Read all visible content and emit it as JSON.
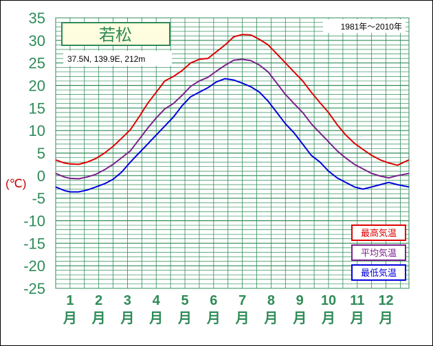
{
  "chart_data": {
    "type": "line",
    "title": "若松",
    "location": "37.5N,  139.9E,  212m",
    "period": "1981年〜2010年",
    "ylabel": "(℃)",
    "ylim": [
      -25,
      35
    ],
    "ystep": 5,
    "yticks": [
      "35",
      "30",
      "25",
      "20",
      "15",
      "10",
      "5",
      "0",
      "-5",
      "-10",
      "-15",
      "-20",
      "-25"
    ],
    "xlim": [
      0.5,
      12.8
    ],
    "month_labels": [
      {
        "num": "1",
        "unit": "月"
      },
      {
        "num": "2",
        "unit": "月"
      },
      {
        "num": "3",
        "unit": "月"
      },
      {
        "num": "4",
        "unit": "月"
      },
      {
        "num": "5",
        "unit": "月"
      },
      {
        "num": "6",
        "unit": "月"
      },
      {
        "num": "7",
        "unit": "月"
      },
      {
        "num": "8",
        "unit": "月"
      },
      {
        "num": "9",
        "unit": "月"
      },
      {
        "num": "10",
        "unit": "月"
      },
      {
        "num": "11",
        "unit": "月"
      },
      {
        "num": "12",
        "unit": "月"
      }
    ],
    "grid": true,
    "legend_position": "bottom-right",
    "series": [
      {
        "name": "最高気温",
        "color": "#dd0000",
        "x": [
          0.5,
          0.8,
          1.0,
          1.3,
          1.6,
          1.9,
          2.2,
          2.5,
          2.8,
          3.1,
          3.4,
          3.7,
          4.0,
          4.3,
          4.6,
          4.9,
          5.2,
          5.5,
          5.8,
          6.1,
          6.4,
          6.7,
          7.0,
          7.3,
          7.6,
          7.9,
          8.2,
          8.5,
          8.8,
          9.1,
          9.4,
          9.7,
          10.0,
          10.3,
          10.6,
          10.9,
          11.2,
          11.5,
          11.8,
          12.1,
          12.4,
          12.8
        ],
        "values": [
          3.5,
          2.8,
          2.6,
          2.5,
          3.0,
          3.8,
          5.0,
          6.5,
          8.3,
          10.2,
          13.0,
          16.0,
          18.5,
          21.0,
          22.0,
          23.3,
          25.0,
          25.8,
          26.0,
          27.5,
          29.0,
          30.8,
          31.3,
          31.2,
          30.2,
          29.0,
          27.0,
          25.0,
          23.0,
          21.0,
          18.5,
          16.2,
          14.0,
          11.3,
          9.0,
          7.2,
          5.8,
          4.5,
          3.5,
          2.8,
          2.3,
          3.5
        ]
      },
      {
        "name": "平均気温",
        "color": "#7b1f8c",
        "x": [
          0.5,
          0.8,
          1.0,
          1.3,
          1.6,
          1.9,
          2.2,
          2.5,
          2.8,
          3.1,
          3.4,
          3.7,
          4.0,
          4.3,
          4.6,
          4.9,
          5.2,
          5.5,
          5.8,
          6.1,
          6.4,
          6.7,
          7.0,
          7.3,
          7.6,
          7.9,
          8.2,
          8.5,
          8.8,
          9.1,
          9.4,
          9.7,
          10.0,
          10.3,
          10.6,
          10.9,
          11.2,
          11.5,
          11.8,
          12.1,
          12.4,
          12.8
        ],
        "values": [
          0.5,
          -0.3,
          -0.6,
          -0.7,
          -0.3,
          0.3,
          1.3,
          2.5,
          4.0,
          5.5,
          8.0,
          10.5,
          12.8,
          14.8,
          16.0,
          17.8,
          19.8,
          21.0,
          21.8,
          23.2,
          24.5,
          25.6,
          25.8,
          25.5,
          24.5,
          23.0,
          20.5,
          18.0,
          16.0,
          14.0,
          11.5,
          9.5,
          7.5,
          5.5,
          3.9,
          2.5,
          1.5,
          0.5,
          -0.1,
          -0.5,
          0.0,
          0.5
        ]
      },
      {
        "name": "最低気温",
        "color": "#0000dd",
        "x": [
          0.5,
          0.8,
          1.0,
          1.3,
          1.6,
          1.9,
          2.2,
          2.5,
          2.8,
          3.1,
          3.4,
          3.7,
          4.0,
          4.3,
          4.6,
          4.9,
          5.2,
          5.5,
          5.8,
          6.1,
          6.4,
          6.7,
          7.0,
          7.3,
          7.6,
          7.9,
          8.2,
          8.5,
          8.8,
          9.1,
          9.4,
          9.7,
          10.0,
          10.3,
          10.6,
          10.9,
          11.2,
          11.5,
          11.8,
          12.1,
          12.4,
          12.8
        ],
        "values": [
          -2.5,
          -3.3,
          -3.6,
          -3.6,
          -3.2,
          -2.5,
          -1.8,
          -0.8,
          0.8,
          3.0,
          5.0,
          7.0,
          9.0,
          11.0,
          13.0,
          15.5,
          17.5,
          18.5,
          19.5,
          20.8,
          21.5,
          21.2,
          20.5,
          19.7,
          18.5,
          16.5,
          14.0,
          11.5,
          9.5,
          7.0,
          4.5,
          3.0,
          1.0,
          -0.5,
          -1.5,
          -2.5,
          -3.0,
          -2.5,
          -2.0,
          -1.5,
          -2.0,
          -2.5
        ]
      }
    ]
  }
}
